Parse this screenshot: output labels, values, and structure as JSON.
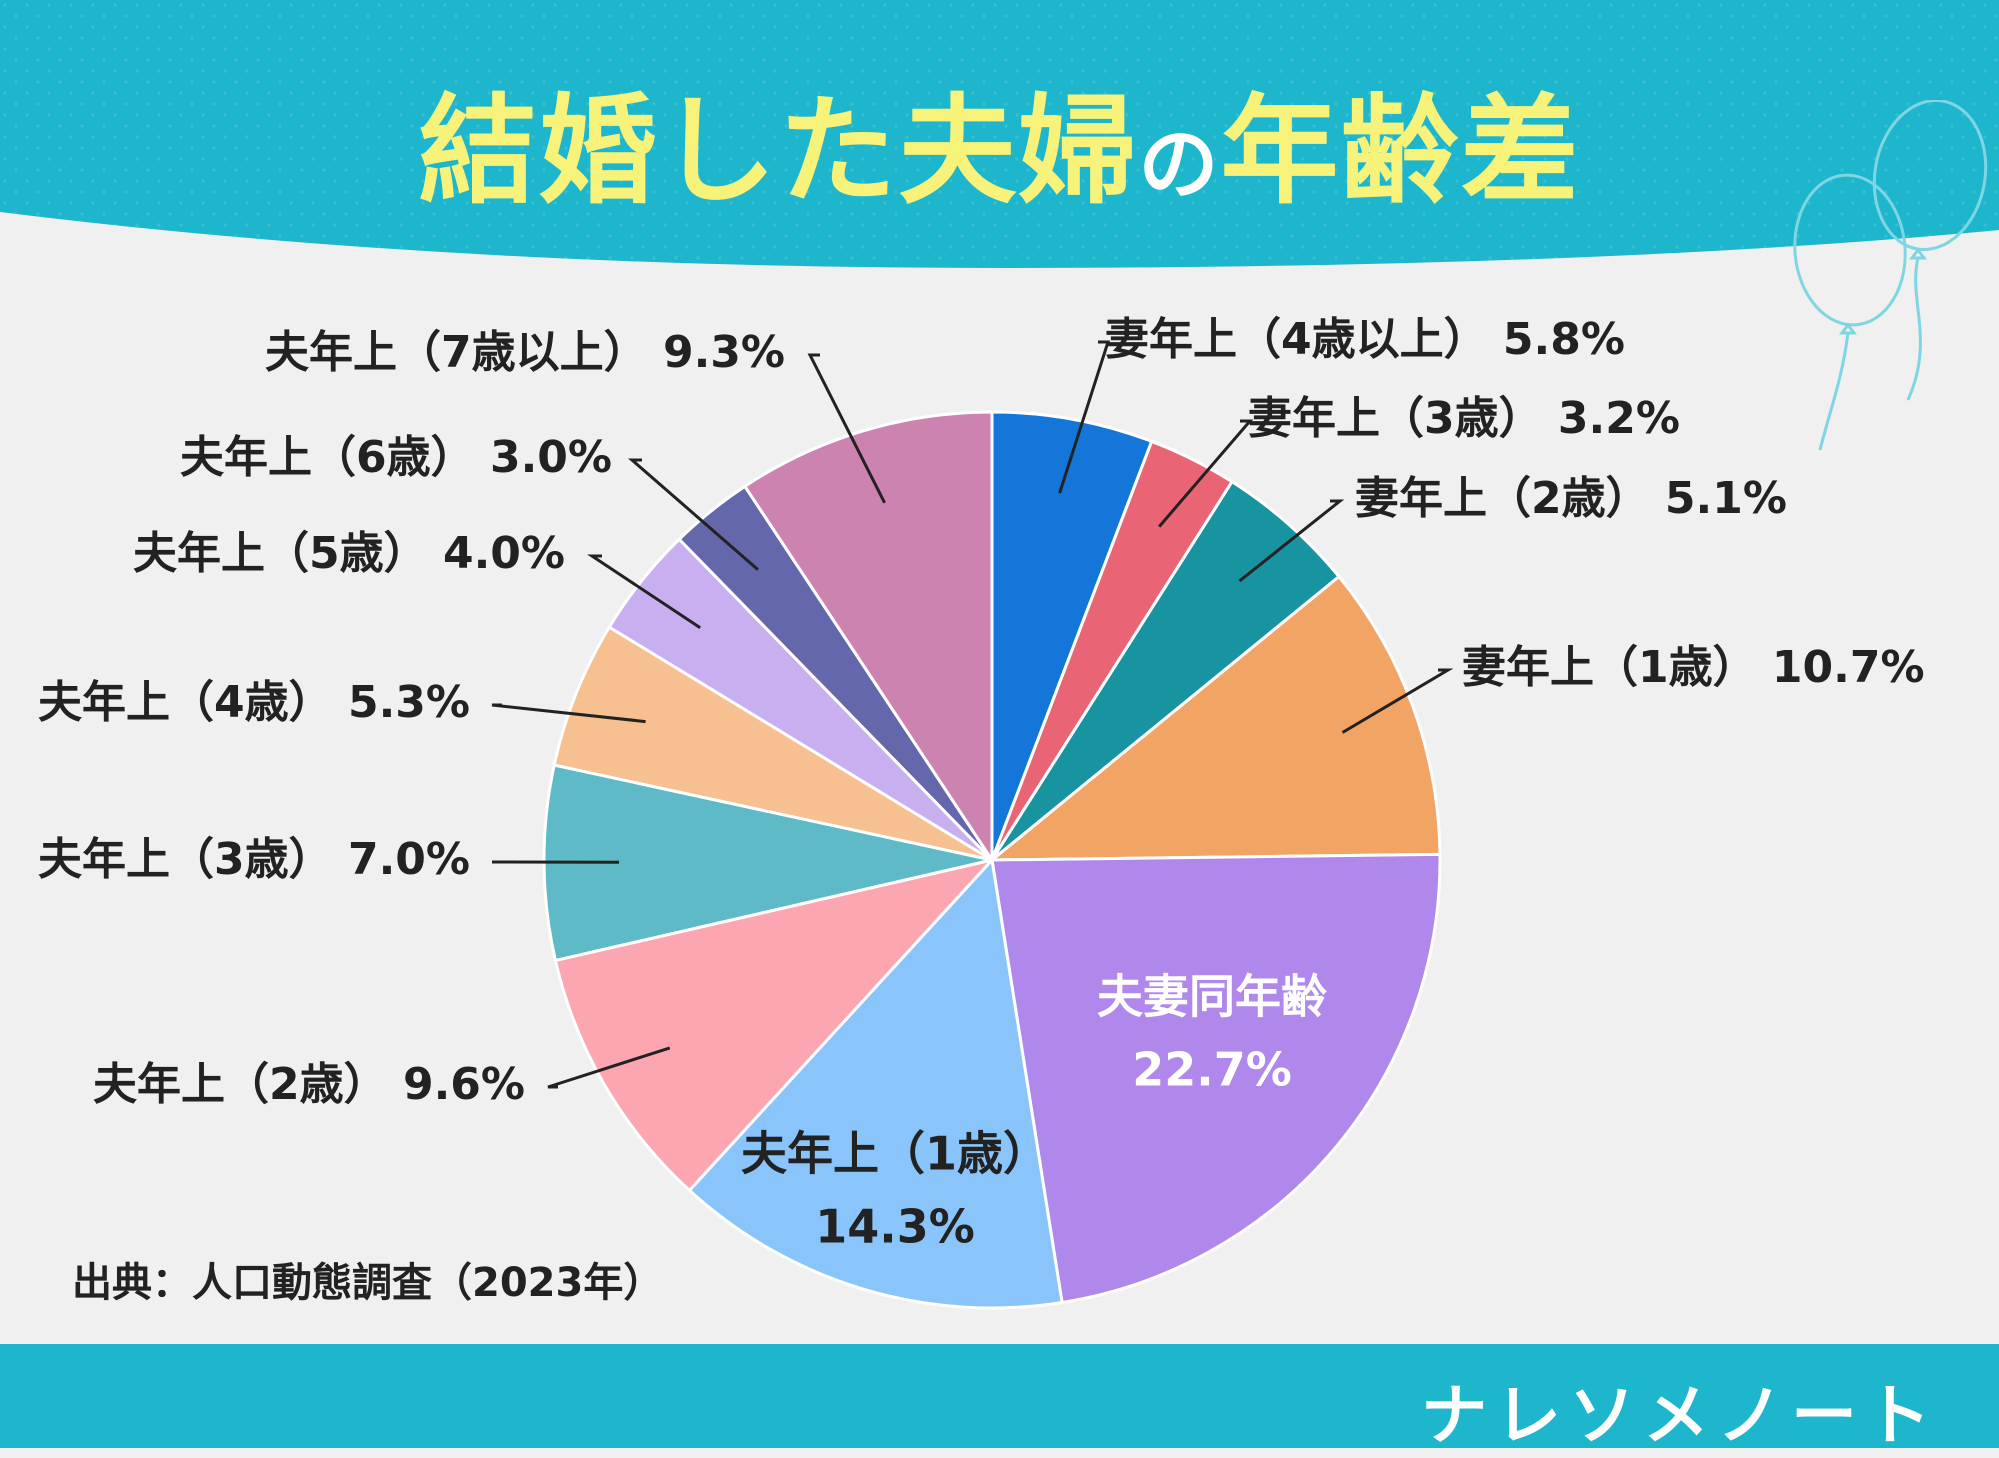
{
  "title": {
    "main": "結婚した夫婦",
    "particle": "の",
    "tail": "年齢差"
  },
  "source": "出典：人口動態調査（2023年）",
  "brand": "ナレソメノート",
  "colors": {
    "header": "#1db6cc",
    "title": "#f6f27a",
    "background": "#f0f0f0",
    "footer": "#1db6cc"
  },
  "chart_data": {
    "type": "pie",
    "title": "結婚した夫婦の年齢差",
    "unit": "%",
    "slices": [
      {
        "label": "妻年上（4歳以上）",
        "value": 5.8,
        "value_text": "5.8%",
        "color": "#1376d8"
      },
      {
        "label": "妻年上（3歳）",
        "value": 3.2,
        "value_text": "3.2%",
        "color": "#e96575"
      },
      {
        "label": "妻年上（2歳）",
        "value": 5.1,
        "value_text": "5.1%",
        "color": "#17949f"
      },
      {
        "label": "妻年上（1歳）",
        "value": 10.7,
        "value_text": "10.7%",
        "color": "#f2a465"
      },
      {
        "label": "夫妻同年齢",
        "value": 22.7,
        "value_text": "22.7%",
        "color": "#b087ea"
      },
      {
        "label": "夫年上（1歳）",
        "value": 14.3,
        "value_text": "14.3%",
        "color": "#89c5fb"
      },
      {
        "label": "夫年上（2歳）",
        "value": 9.6,
        "value_text": "9.6%",
        "color": "#fba6b1"
      },
      {
        "label": "夫年上（3歳）",
        "value": 7.0,
        "value_text": "7.0%",
        "color": "#5dbac6"
      },
      {
        "label": "夫年上（4歳）",
        "value": 5.3,
        "value_text": "5.3%",
        "color": "#f6c090"
      },
      {
        "label": "夫年上（5歳）",
        "value": 4.0,
        "value_text": "4.0%",
        "color": "#c8aff0"
      },
      {
        "label": "夫年上（6歳）",
        "value": 3.0,
        "value_text": "3.0%",
        "color": "#6467ab"
      },
      {
        "label": "夫年上（7歳以上）",
        "value": 9.3,
        "value_text": "9.3%",
        "color": "#cd83b0"
      }
    ]
  }
}
